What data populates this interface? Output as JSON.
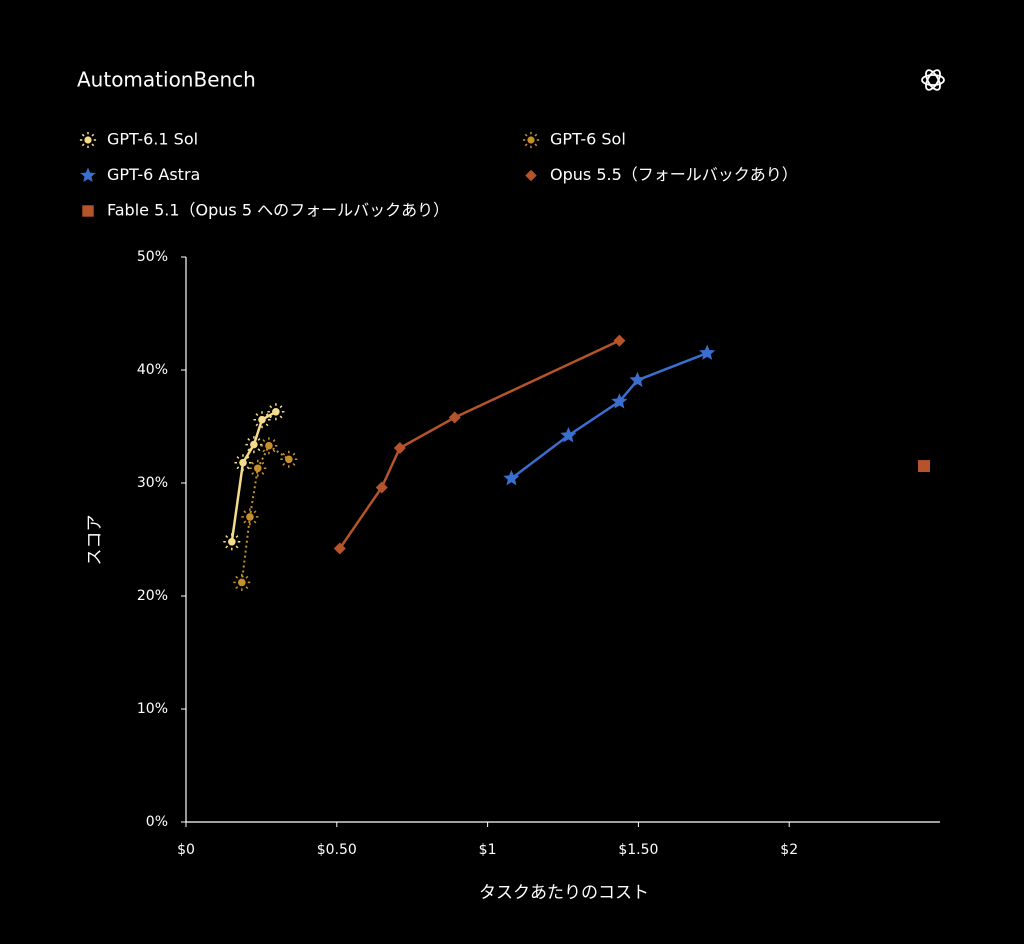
{
  "chart_data": {
    "type": "line",
    "title": "AutomationBench",
    "x_label": "タスクあたりのコスト",
    "y_label": "スコア",
    "xlim": [
      0,
      2.5
    ],
    "ylim": [
      0,
      50
    ],
    "xticks": [
      {
        "value": 0,
        "label": "$0"
      },
      {
        "value": 0.5,
        "label": "$0.50"
      },
      {
        "value": 1,
        "label": "$1"
      },
      {
        "value": 1.5,
        "label": "$1.50"
      },
      {
        "value": 2,
        "label": "$2"
      }
    ],
    "yticks": [
      {
        "value": 0,
        "label": "0%"
      },
      {
        "value": 10,
        "label": "10%"
      },
      {
        "value": 20,
        "label": "20%"
      },
      {
        "value": 30,
        "label": "30%"
      },
      {
        "value": 40,
        "label": "40%"
      },
      {
        "value": 50,
        "label": "50%"
      }
    ],
    "grid": false,
    "series": [
      {
        "name": "GPT-6.1 Sol",
        "color": "#f5dc8c",
        "marker": "sun",
        "line": "solid",
        "x": [
          0.152,
          0.189,
          0.225,
          0.252,
          0.298
        ],
        "values": [
          24.8,
          31.8,
          33.4,
          35.6,
          36.3
        ]
      },
      {
        "name": "GPT-6 Sol",
        "color": "#c8902a",
        "marker": "sun",
        "line": "dotted",
        "x": [
          0.185,
          0.212,
          0.238,
          0.275,
          0.341
        ],
        "values": [
          21.2,
          27.0,
          31.3,
          33.3,
          32.1
        ]
      },
      {
        "name": "GPT-6 Astra",
        "color": "#3a6fd0",
        "marker": "star",
        "line": "solid",
        "x": [
          1.079,
          1.268,
          1.437,
          1.497,
          1.728
        ],
        "values": [
          30.4,
          34.2,
          37.2,
          39.1,
          41.5
        ]
      },
      {
        "name": "Opus 5.5（フォールバックあり）",
        "color": "#b5532a",
        "marker": "diamond",
        "line": "solid",
        "x": [
          0.51,
          0.649,
          0.709,
          0.891,
          1.437
        ],
        "values": [
          24.2,
          29.6,
          33.1,
          35.8,
          42.6
        ]
      },
      {
        "name": "Fable 5.1（Opus 5 へのフォールバックあり）",
        "color": "#b5532a",
        "marker": "square",
        "line": "none",
        "x": [
          2.447
        ],
        "values": [
          31.5
        ]
      }
    ]
  }
}
